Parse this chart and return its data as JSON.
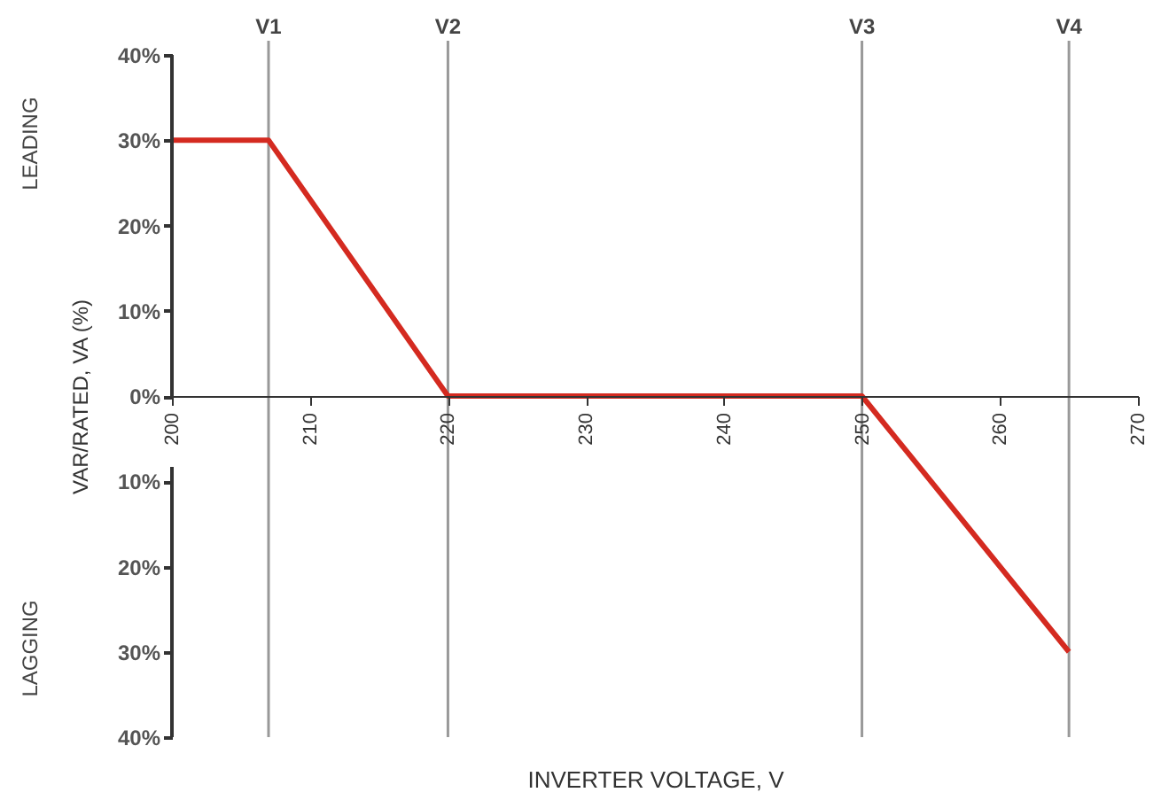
{
  "chart_data": {
    "type": "line",
    "xlabel": "INVERTER VOLTAGE, V",
    "ylabel": "VAR/RATED, VA (%)",
    "x": [
      200,
      207,
      220,
      250,
      265
    ],
    "series": [
      {
        "color": "#d42a20",
        "values": [
          30,
          30,
          0,
          0,
          -30
        ]
      }
    ],
    "xlim": [
      200,
      270
    ],
    "xticks": [
      200,
      210,
      220,
      230,
      240,
      250,
      260,
      270
    ],
    "ylim": [
      -40,
      40
    ],
    "yticks": [
      {
        "value": -40,
        "label": "40%"
      },
      {
        "value": -30,
        "label": "30%"
      },
      {
        "value": -20,
        "label": "20%"
      },
      {
        "value": -10,
        "label": "10%"
      },
      {
        "value": 0,
        "label": "0%"
      },
      {
        "value": 10,
        "label": "10%"
      },
      {
        "value": 20,
        "label": "20%"
      },
      {
        "value": 30,
        "label": "30%"
      },
      {
        "value": 40,
        "label": "40%"
      }
    ],
    "ref_lines": [
      {
        "axis": "x",
        "value": 207,
        "label": "V1",
        "color": "#999999"
      },
      {
        "axis": "x",
        "value": 220,
        "label": "V2",
        "color": "#999999"
      },
      {
        "axis": "x",
        "value": 250,
        "label": "V3",
        "color": "#999999"
      },
      {
        "axis": "x",
        "value": 265,
        "label": "V4",
        "color": "#999999"
      }
    ],
    "annotations": [
      "LEADING",
      "LAGGING"
    ],
    "grid": false,
    "marker": "none",
    "line_style": "solid"
  }
}
